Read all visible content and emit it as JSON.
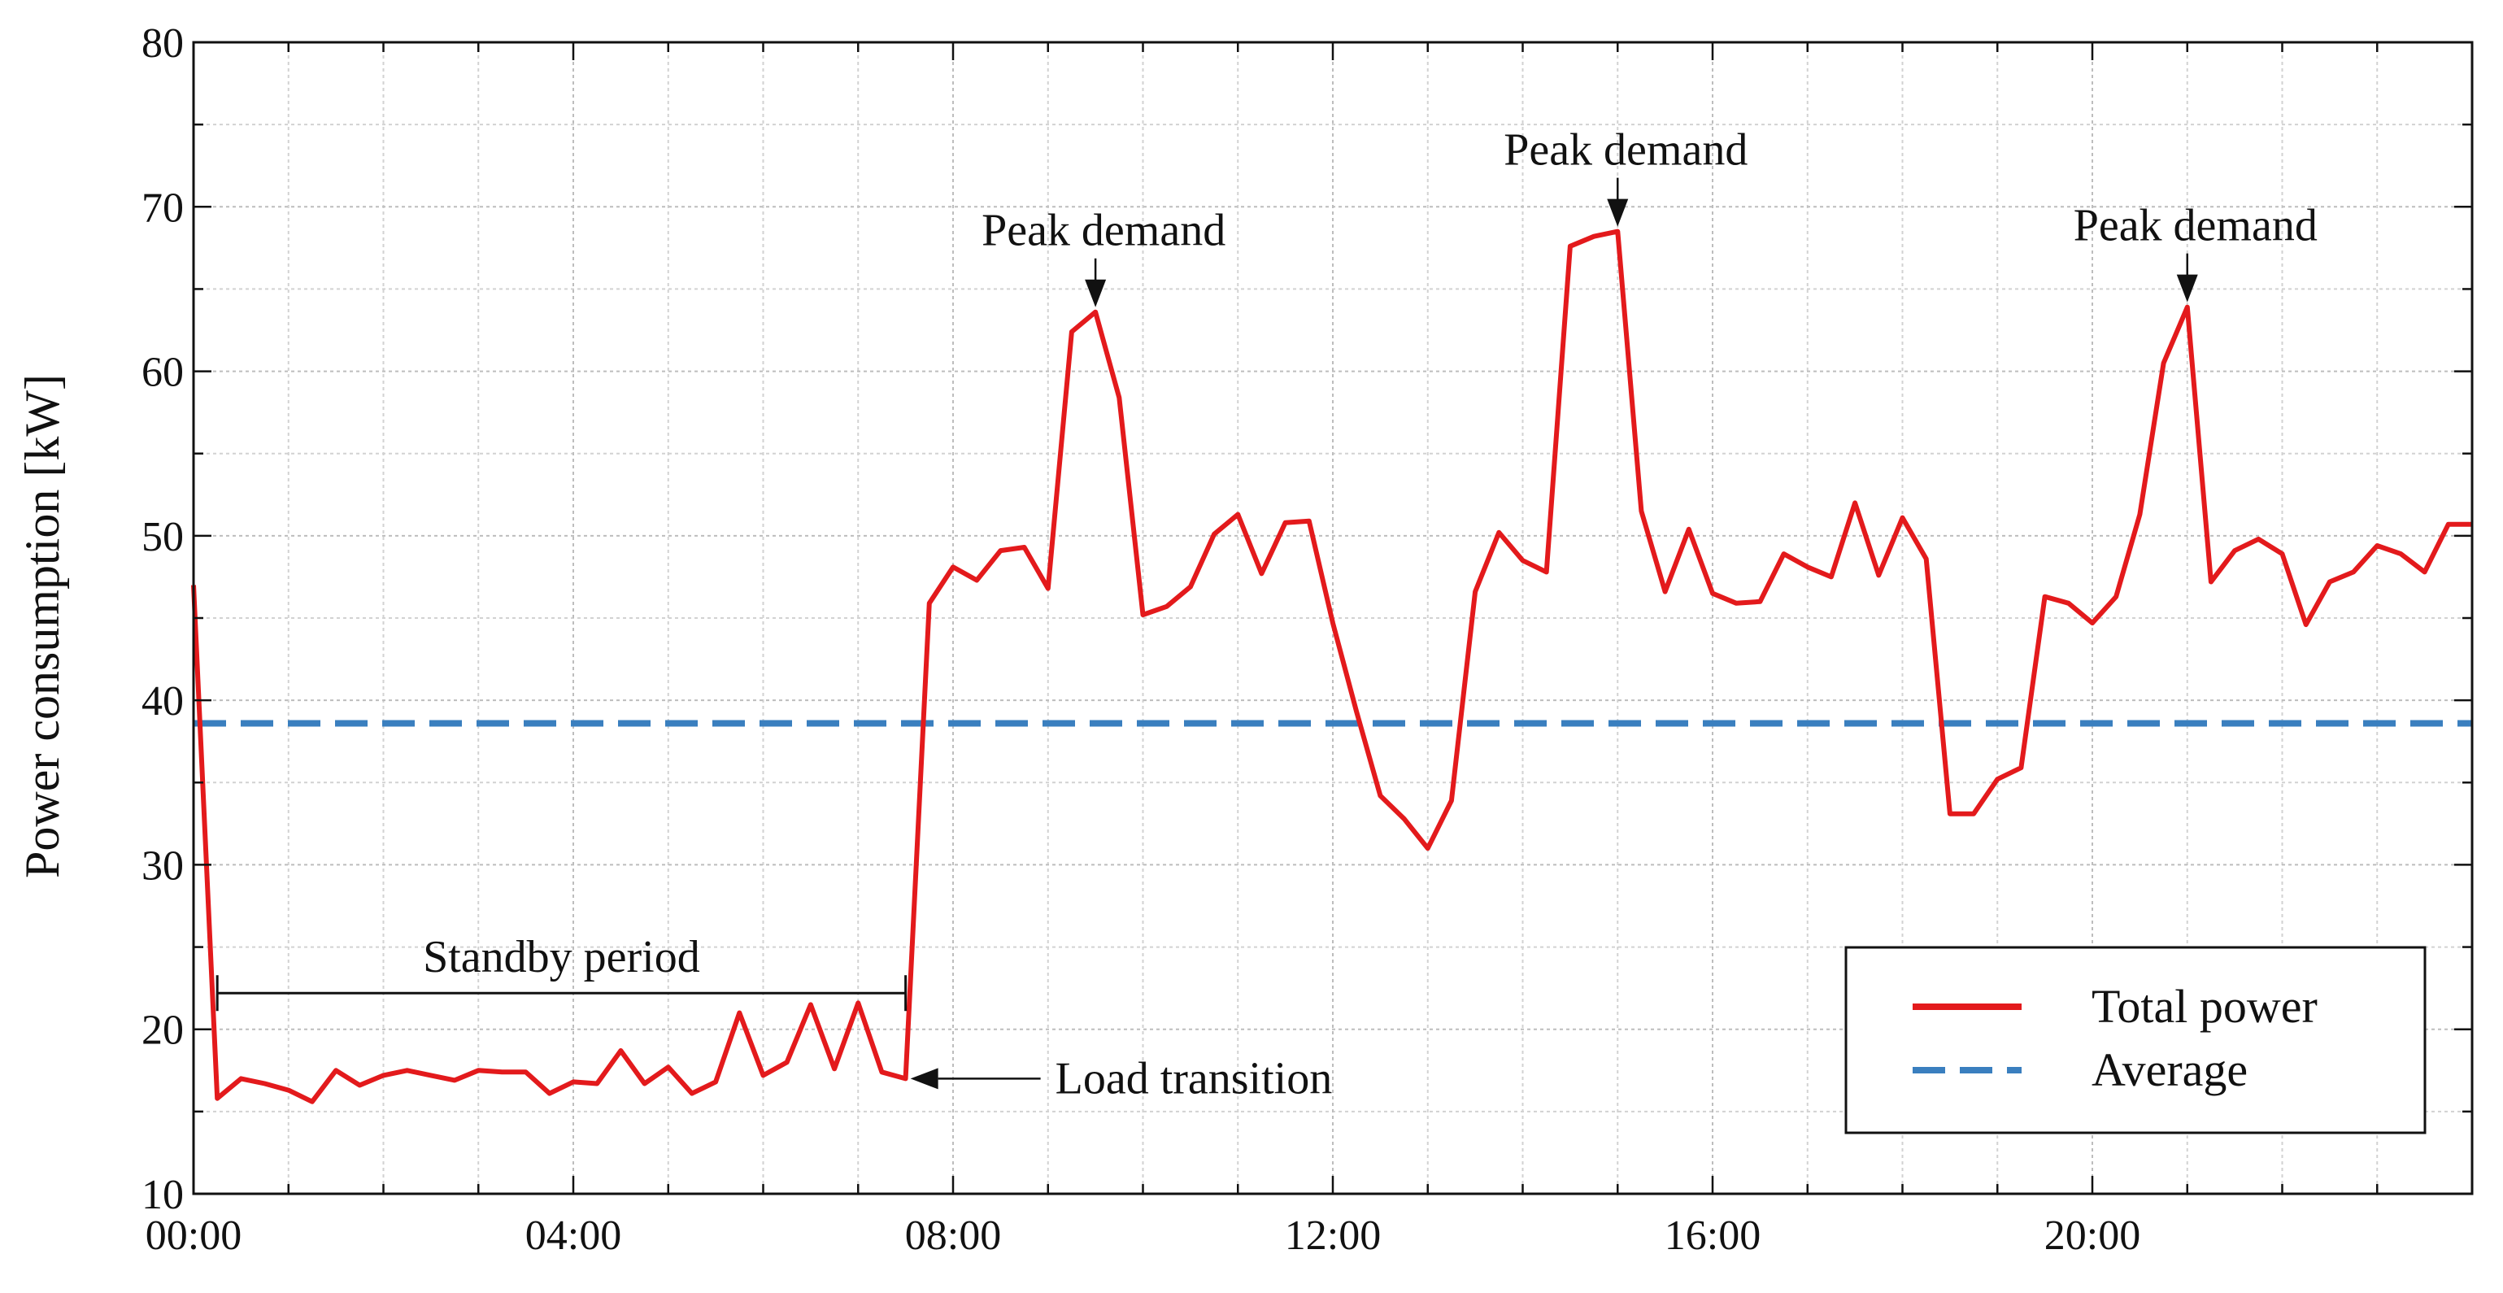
{
  "chart_data": {
    "type": "line",
    "title": "",
    "xlabel": "",
    "ylabel": "Power consumption [kW]",
    "xlim": [
      0,
      24
    ],
    "ylim": [
      10,
      80
    ],
    "grid": true,
    "x_major_ticks": [
      0,
      4,
      8,
      12,
      16,
      20
    ],
    "x_tick_labels": [
      "00:00",
      "04:00",
      "08:00",
      "12:00",
      "16:00",
      "20:00"
    ],
    "y_major_ticks": [
      10,
      20,
      30,
      40,
      50,
      60,
      70,
      80
    ],
    "y_tick_labels": [
      "10",
      "20",
      "30",
      "40",
      "50",
      "60",
      "70",
      "80"
    ],
    "legend_position": "bottom-right",
    "series": [
      {
        "name": "Total power",
        "color": "#e31a1c",
        "style": "solid",
        "x": [
          0,
          0.25,
          0.5,
          0.75,
          1.0,
          1.25,
          1.5,
          1.75,
          2.0,
          2.25,
          2.5,
          2.75,
          3.0,
          3.25,
          3.5,
          3.75,
          4.0,
          4.25,
          4.5,
          4.75,
          5.0,
          5.25,
          5.5,
          5.75,
          6.0,
          6.25,
          6.5,
          6.75,
          7.0,
          7.25,
          7.5,
          7.75,
          8.0,
          8.25,
          8.5,
          8.75,
          9.0,
          9.25,
          9.5,
          9.75,
          10.0,
          10.25,
          10.5,
          10.75,
          11.0,
          11.25,
          11.5,
          11.75,
          12.0,
          12.25,
          12.5,
          12.75,
          13.0,
          13.25,
          13.5,
          13.75,
          14.0,
          14.25,
          14.5,
          14.75,
          15.0,
          15.25,
          15.5,
          15.75,
          16.0,
          16.25,
          16.5,
          16.75,
          17.0,
          17.25,
          17.5,
          17.75,
          18.0,
          18.25,
          18.5,
          18.75,
          19.0,
          19.25,
          19.5,
          19.75,
          20.0,
          20.25,
          20.5,
          20.75,
          21.0,
          21.25,
          21.5,
          21.75,
          22.0,
          22.25,
          22.5,
          22.75,
          23.0,
          23.25,
          23.5,
          23.75,
          24.0
        ],
        "values": [
          47.0,
          15.8,
          17.0,
          16.7,
          16.3,
          15.6,
          17.5,
          16.6,
          17.2,
          17.5,
          17.2,
          16.9,
          17.5,
          17.4,
          17.4,
          16.1,
          16.8,
          16.7,
          18.7,
          16.7,
          17.7,
          16.1,
          16.8,
          21.0,
          17.2,
          18.0,
          21.5,
          17.6,
          21.6,
          17.4,
          17.0,
          45.9,
          48.1,
          47.3,
          49.1,
          49.3,
          46.8,
          62.4,
          63.6,
          58.4,
          45.2,
          45.7,
          46.9,
          50.1,
          51.3,
          47.7,
          50.8,
          50.9,
          44.7,
          39.3,
          34.2,
          32.8,
          31.0,
          33.9,
          46.6,
          50.2,
          48.5,
          47.8,
          67.6,
          68.2,
          68.5,
          51.5,
          46.6,
          50.4,
          46.5,
          45.9,
          46.0,
          48.9,
          48.1,
          47.5,
          52.0,
          47.6,
          51.1,
          48.6,
          33.1,
          33.1,
          35.2,
          35.9,
          46.3,
          45.9,
          44.7,
          46.3,
          51.3,
          60.5,
          63.9,
          47.2,
          49.1,
          49.8,
          48.9,
          44.6,
          47.2,
          47.8,
          49.4,
          48.9,
          47.8,
          50.7,
          50.7
        ]
      },
      {
        "name": "Average",
        "color": "#3a7fbf",
        "style": "dashed",
        "x": [
          0,
          24
        ],
        "values": [
          38.6,
          38.6
        ]
      }
    ],
    "annotations": [
      {
        "text": "Peak demand",
        "x": 9.5,
        "y": 63.6
      },
      {
        "text": "Peak demand",
        "x": 15.0,
        "y": 68.5
      },
      {
        "text": "Peak demand",
        "x": 21.0,
        "y": 63.9
      },
      {
        "text": "Standby period",
        "x_start": 0.25,
        "x_end": 7.5,
        "y": 22.2
      },
      {
        "text": "Load transition",
        "x": 7.5,
        "y": 17.0
      }
    ]
  }
}
